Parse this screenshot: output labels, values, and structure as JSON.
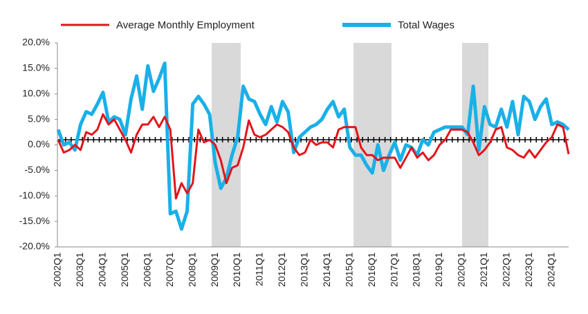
{
  "chart_data": {
    "type": "line",
    "categories": [
      "2002Q1",
      null,
      null,
      null,
      "2003Q1",
      null,
      null,
      null,
      "2004Q1",
      null,
      null,
      null,
      "2005Q1",
      null,
      null,
      null,
      "2006Q1",
      null,
      null,
      null,
      "2007Q1",
      null,
      null,
      null,
      "2008Q1",
      null,
      null,
      null,
      "2009Q1",
      null,
      null,
      null,
      "2010Q1",
      null,
      null,
      null,
      "2011Q1",
      null,
      null,
      null,
      "2012Q1",
      null,
      null,
      null,
      "2013Q1",
      null,
      null,
      null,
      "2014Q1",
      null,
      null,
      null,
      "2015Q1",
      null,
      null,
      null,
      "2016Q1",
      null,
      null,
      null,
      "2017Q1",
      null,
      null,
      null,
      "2018Q1",
      null,
      null,
      null,
      "2019Q1",
      null,
      null,
      null,
      "2020Q1",
      null,
      null,
      null,
      "2021Q1",
      null,
      null,
      null,
      "2022Q1",
      null,
      null,
      null,
      "2023Q1",
      null,
      null,
      null,
      "2024Q1",
      null,
      null,
      null
    ],
    "series": [
      {
        "name": "Average Monthly Employment",
        "color": "#e3141b",
        "values": [
          1,
          -1.5,
          -1,
          0,
          -1,
          2.5,
          2,
          3,
          6,
          4,
          5,
          3,
          1,
          -1.5,
          2,
          4,
          4,
          5.5,
          3.5,
          5.5,
          3,
          -10.5,
          -7.5,
          -9.5,
          -7.5,
          3,
          0.5,
          1,
          0,
          -3,
          -7.5,
          -4.5,
          -4,
          -0.5,
          4.8,
          2,
          1.5,
          2,
          3,
          4,
          3.5,
          2.5,
          -0.5,
          -2,
          -1.5,
          1,
          0,
          0.5,
          0.5,
          -0.5,
          3,
          3.5,
          3.5,
          3.5,
          -0.5,
          -2,
          -2,
          -3,
          -2.5,
          -2.5,
          -2.5,
          -4.5,
          -2.5,
          -0.5,
          -2.5,
          -1.5,
          -3,
          -2,
          0,
          1,
          3,
          3,
          3,
          2.5,
          0.5,
          -2,
          -1,
          0.5,
          3,
          3.5,
          -0.5,
          -1,
          -2,
          -2.5,
          -1,
          -2.5,
          -1,
          0.5,
          1.5,
          4,
          3.5,
          -1.8
        ]
      },
      {
        "name": "Total Wages",
        "color": "#1ab0e8",
        "values": [
          3,
          0,
          0.5,
          -1,
          4,
          6.5,
          6,
          8,
          10.3,
          4.5,
          5.5,
          5,
          2,
          9,
          13.5,
          7,
          15.5,
          10.5,
          13,
          16,
          -13.5,
          -13,
          -16.5,
          -13,
          8,
          9.5,
          8,
          6,
          -3.5,
          -8.5,
          -6.5,
          -2,
          1.5,
          11.5,
          9,
          8.5,
          6,
          4,
          7.5,
          4.5,
          8.5,
          6.5,
          -1.5,
          1.5,
          2.5,
          3.5,
          4,
          5,
          7,
          8.5,
          5.5,
          7,
          -0.5,
          -2,
          -2,
          -4,
          -5.5,
          0,
          -5,
          -2,
          0.5,
          -3,
          0,
          -0.5,
          -2,
          1,
          0,
          2.5,
          3,
          3.5,
          3.5,
          3.5,
          3.5,
          2,
          11.5,
          -1,
          7.5,
          4,
          3.5,
          7,
          3.5,
          8.5,
          2,
          9.5,
          8.5,
          5,
          7.5,
          9,
          4,
          4.5,
          4,
          3
        ]
      }
    ],
    "ylim": [
      -20,
      20
    ],
    "yticks": [
      {
        "value": -20,
        "label": "-20.0%"
      },
      {
        "value": -15,
        "label": "-15.0%"
      },
      {
        "value": -10,
        "label": "-10.0%"
      },
      {
        "value": -5,
        "label": "-5.0%"
      },
      {
        "value": 0,
        "label": "0.0%"
      },
      {
        "value": 5,
        "label": "5.0%"
      },
      {
        "value": 10,
        "label": "10.0%"
      },
      {
        "value": 15,
        "label": "15.0%"
      },
      {
        "value": 20,
        "label": "20.0%"
      }
    ]
  }
}
